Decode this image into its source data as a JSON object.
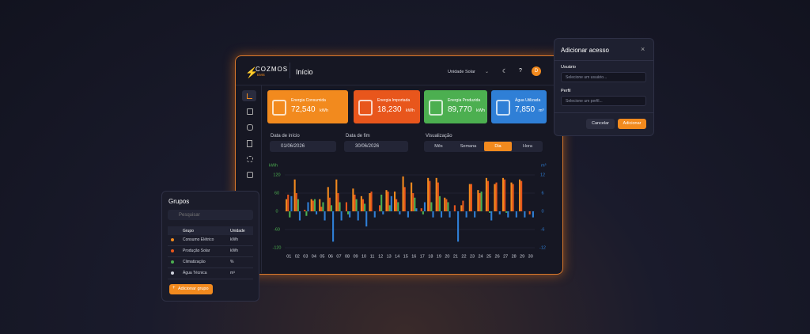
{
  "header": {
    "logo": "COZMOS",
    "logo_sub": "EMS",
    "title": "Início",
    "unit_select": "Unidade Solar",
    "avatar": "D"
  },
  "kpis": [
    {
      "label": "Energia Consumida",
      "value": "72,540",
      "unit": "kWh",
      "color": "#f28a1e"
    },
    {
      "label": "Energia Importada",
      "value": "18,230",
      "unit": "kWh",
      "color": "#e8561c"
    },
    {
      "label": "Energia Produzida",
      "value": "89,770",
      "unit": "kWh",
      "color": "#4caf50"
    },
    {
      "label": "Água Utilizada",
      "value": "7,850",
      "unit": "m³",
      "color": "#2f7fd6"
    }
  ],
  "filters": {
    "start_label": "Data de início",
    "start": "01/06/2026",
    "end_label": "Data de fim",
    "end": "30/06/2026",
    "view_label": "Visualização",
    "views": [
      "Mês",
      "Semana",
      "Dia",
      "Hora"
    ],
    "active_view": 2
  },
  "chart": {
    "type": "bar",
    "y_label": "kWh",
    "y2_label": "m³",
    "categories": [
      "01",
      "02",
      "03",
      "04",
      "05",
      "06",
      "07",
      "08",
      "09",
      "10",
      "11",
      "12",
      "13",
      "14",
      "15",
      "16",
      "17",
      "18",
      "19",
      "20",
      "21",
      "22",
      "23",
      "24",
      "25",
      "26",
      "27",
      "28",
      "29",
      "30"
    ],
    "series": [
      {
        "color": "#f28a1e",
        "values": [
          40,
          105,
          0,
          40,
          40,
          80,
          105,
          0,
          75,
          50,
          60,
          0,
          70,
          65,
          115,
          95,
          0,
          110,
          110,
          45,
          0,
          20,
          90,
          70,
          110,
          90,
          110,
          95,
          105,
          0
        ]
      },
      {
        "color": "#e8561c",
        "values": [
          55,
          60,
          5,
          35,
          15,
          45,
          60,
          30,
          55,
          40,
          65,
          20,
          65,
          40,
          80,
          60,
          10,
          100,
          95,
          40,
          20,
          35,
          90,
          60,
          100,
          95,
          105,
          90,
          100,
          -10
        ]
      },
      {
        "color": "#4caf50",
        "values": [
          -20,
          40,
          -15,
          40,
          30,
          20,
          30,
          -10,
          40,
          25,
          0,
          55,
          20,
          30,
          0,
          45,
          -10,
          30,
          50,
          30,
          0,
          0,
          0,
          65,
          -5,
          0,
          -5,
          0,
          0,
          0
        ]
      },
      {
        "color": "#2f7fd6",
        "axis": "y2",
        "values": [
          5,
          -3,
          3,
          -1,
          -3,
          -10,
          -3,
          -2,
          -3,
          -5,
          -2,
          -1,
          5,
          -1,
          -2,
          1,
          3,
          -2,
          -2,
          -2,
          -10,
          -2,
          -2,
          0,
          -3,
          -1,
          -2,
          -2,
          -2,
          -2
        ]
      }
    ],
    "ylim": [
      -120,
      120
    ],
    "yticks": [
      -120,
      -60,
      0,
      60,
      120
    ],
    "y2lim": [
      -12,
      12
    ],
    "y2ticks": [
      -12,
      -6,
      0,
      6,
      12
    ],
    "grid": true
  },
  "groups": {
    "title": "Grupos",
    "search": "Pesquisar",
    "columns": [
      "Grupo",
      "Unidade"
    ],
    "rows": [
      [
        "Consumo Elétrico",
        "kWh"
      ],
      [
        "Produção Solar",
        "kWh"
      ],
      [
        "Climatização",
        "%"
      ],
      [
        "Água Técnica",
        "m³"
      ]
    ],
    "button": "Adicionar grupo"
  },
  "dialog": {
    "title": "Adicionar acesso",
    "fields": [
      {
        "label": "Usuário",
        "placeholder": "Selecione um usuário..."
      },
      {
        "label": "Perfil",
        "placeholder": "Selecione um perfil..."
      }
    ],
    "cancel": "Cancelar",
    "submit": "Adicionar"
  }
}
